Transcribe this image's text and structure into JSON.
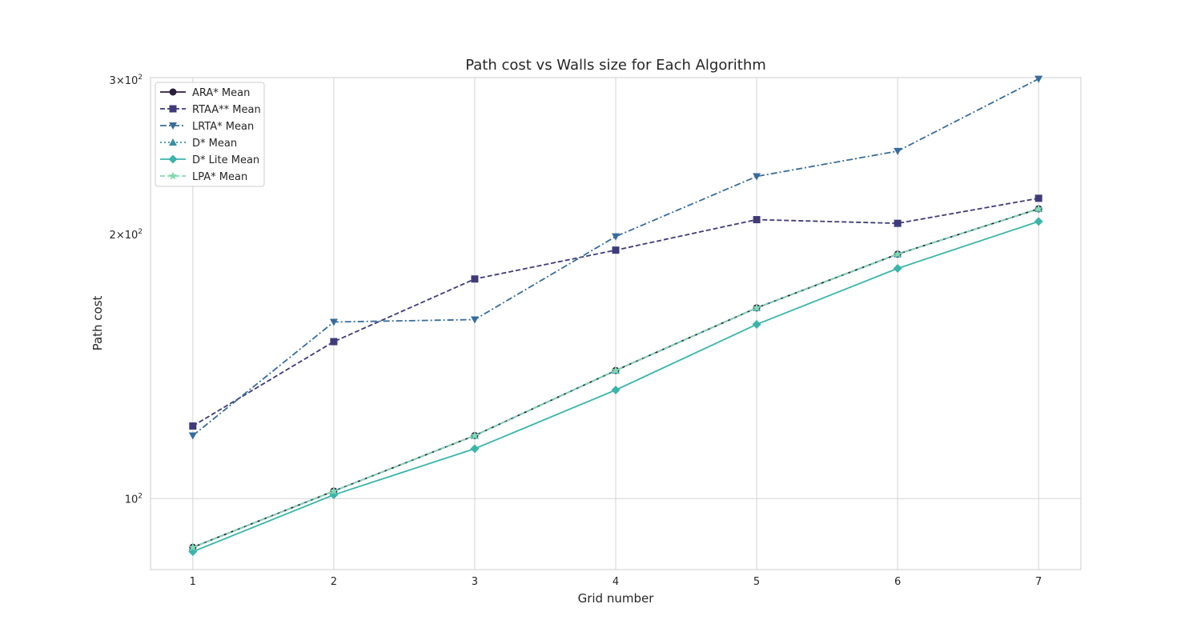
{
  "chart_data": {
    "type": "line",
    "title": "Path cost vs Walls size for Each Algorithm",
    "xlabel": "Grid number",
    "ylabel": "Path cost",
    "x": [
      1,
      2,
      3,
      4,
      5,
      6,
      7
    ],
    "yscale": "log",
    "ylim": [
      83,
      302
    ],
    "xlim": [
      0.7,
      7.3
    ],
    "grid": true,
    "legend_location": "top-left",
    "ytick_labels": [
      {
        "value": 100,
        "base": "10",
        "exp": "2",
        "coef": ""
      },
      {
        "value": 200,
        "base": "10",
        "exp": "2",
        "coef": "2×"
      },
      {
        "value": 300,
        "base": "10",
        "exp": "2",
        "coef": "3×"
      }
    ],
    "series": [
      {
        "name": "ARA* Mean",
        "color": "#2c1e3d",
        "dash": "solid",
        "marker": "circle",
        "values": [
          88,
          102,
          118,
          140,
          165,
          190,
          214
        ]
      },
      {
        "name": "RTAA** Mean",
        "color": "#3f3b7a",
        "dash": "dashed",
        "marker": "square",
        "values": [
          121,
          151,
          178,
          192,
          208,
          206,
          220
        ]
      },
      {
        "name": "LRTA* Mean",
        "color": "#376c9c",
        "dash": "dashdot",
        "marker": "triangle-down",
        "values": [
          118,
          159,
          160,
          199,
          233,
          249,
          301
        ]
      },
      {
        "name": "D* Mean",
        "color": "#3a8fa8",
        "dash": "dotted",
        "marker": "triangle-up",
        "values": [
          88,
          102,
          118,
          140,
          165,
          190,
          214
        ]
      },
      {
        "name": "D* Lite Mean",
        "color": "#3bb5aa",
        "dash": "solid",
        "marker": "diamond",
        "values": [
          87,
          101,
          114,
          133,
          158,
          183,
          207
        ]
      },
      {
        "name": "LPA* Mean",
        "color": "#82d9b0",
        "dash": "dashed",
        "marker": "star",
        "values": [
          88,
          102,
          118,
          140,
          165,
          190,
          214
        ]
      }
    ]
  }
}
